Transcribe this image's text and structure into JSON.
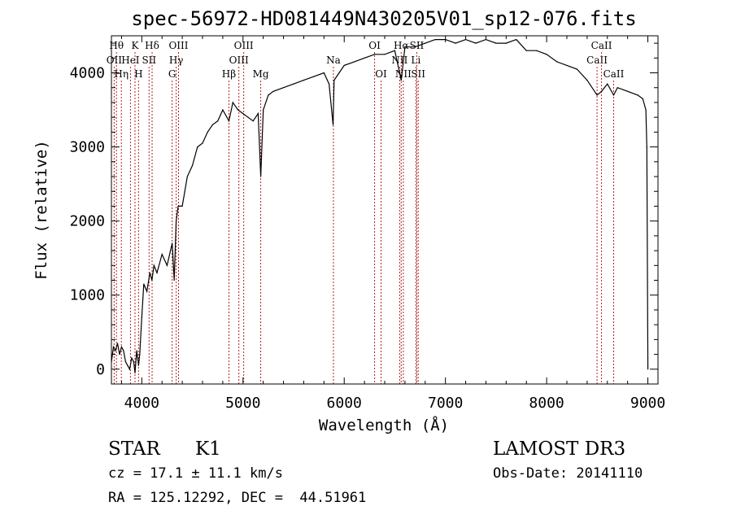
{
  "chart_data": {
    "type": "line",
    "title": "spec-56972-HD081449N430205V01_sp12-076.fits",
    "xlabel": "Wavelength (Å)",
    "ylabel": "Flux (relative)",
    "xlim": [
      3700,
      9100
    ],
    "ylim": [
      -200,
      4500
    ],
    "xticks": [
      4000,
      5000,
      6000,
      7000,
      8000,
      9000
    ],
    "yticks": [
      0,
      1000,
      2000,
      3000,
      4000
    ],
    "grid": false,
    "series": [
      {
        "x": [
          3700,
          3720,
          3740,
          3760,
          3780,
          3800,
          3820,
          3840,
          3860,
          3880,
          3900,
          3920,
          3933,
          3950,
          3968,
          3980,
          4000,
          4020,
          4050,
          4080,
          4100,
          4120,
          4150,
          4200,
          4250,
          4300,
          4320,
          4340,
          4360,
          4400,
          4450,
          4500,
          4550,
          4600,
          4650,
          4700,
          4750,
          4800,
          4861,
          4900,
          4950,
          5000,
          5050,
          5100,
          5150,
          5175,
          5200,
          5250,
          5300,
          5400,
          5500,
          5600,
          5700,
          5800,
          5850,
          5890,
          5900,
          5950,
          6000,
          6100,
          6200,
          6300,
          6400,
          6500,
          6563,
          6600,
          6700,
          6800,
          6900,
          7000,
          7100,
          7200,
          7300,
          7400,
          7500,
          7600,
          7700,
          7800,
          7900,
          8000,
          8100,
          8200,
          8300,
          8400,
          8498,
          8542,
          8600,
          8662,
          8700,
          8800,
          8900,
          8950,
          8980,
          8990,
          9000
        ],
        "y": [
          100,
          300,
          250,
          350,
          200,
          300,
          250,
          100,
          50,
          0,
          150,
          100,
          -50,
          250,
          50,
          200,
          700,
          1150,
          1050,
          1300,
          1200,
          1400,
          1300,
          1550,
          1400,
          1700,
          1200,
          2000,
          2200,
          2200,
          2600,
          2750,
          3000,
          3050,
          3200,
          3300,
          3350,
          3500,
          3350,
          3600,
          3500,
          3450,
          3400,
          3350,
          3450,
          2600,
          3500,
          3700,
          3750,
          3800,
          3850,
          3900,
          3950,
          4000,
          3850,
          3300,
          3900,
          4000,
          4100,
          4150,
          4200,
          4250,
          4250,
          4300,
          3900,
          4350,
          4350,
          4400,
          4450,
          4450,
          4400,
          4450,
          4400,
          4450,
          4400,
          4400,
          4450,
          4300,
          4300,
          4250,
          4150,
          4100,
          4050,
          3900,
          3700,
          3750,
          3850,
          3700,
          3800,
          3750,
          3700,
          3650,
          3500,
          3000,
          0
        ]
      }
    ],
    "line_markers": [
      {
        "wl": 3750,
        "label": "Hθ",
        "row": 0
      },
      {
        "wl": 3727,
        "label": "OII",
        "row": 1
      },
      {
        "wl": 3798,
        "label": "Hη",
        "row": 2
      },
      {
        "wl": 3888,
        "label": "HeI",
        "row": 1
      },
      {
        "wl": 3933,
        "label": "K",
        "row": 0
      },
      {
        "wl": 3968,
        "label": "H",
        "row": 2
      },
      {
        "wl": 4072,
        "label": "SII",
        "row": 1
      },
      {
        "wl": 4102,
        "label": "Hδ",
        "row": 0
      },
      {
        "wl": 4300,
        "label": "G",
        "row": 2
      },
      {
        "wl": 4340,
        "label": "Hγ",
        "row": 1
      },
      {
        "wl": 4363,
        "label": "OIII",
        "row": 0
      },
      {
        "wl": 4861,
        "label": "Hβ",
        "row": 2
      },
      {
        "wl": 4959,
        "label": "OIII",
        "row": 1
      },
      {
        "wl": 5007,
        "label": "OIII",
        "row": 0
      },
      {
        "wl": 5175,
        "label": "Mg",
        "row": 2
      },
      {
        "wl": 5893,
        "label": "Na",
        "row": 1
      },
      {
        "wl": 6300,
        "label": "OI",
        "row": 0
      },
      {
        "wl": 6364,
        "label": "OI",
        "row": 2
      },
      {
        "wl": 6548,
        "label": "NII",
        "row": 1
      },
      {
        "wl": 6563,
        "label": "Hα",
        "row": 0
      },
      {
        "wl": 6584,
        "label": "NII",
        "row": 2
      },
      {
        "wl": 6708,
        "label": "Li",
        "row": 1
      },
      {
        "wl": 6717,
        "label": "SII",
        "row": 0
      },
      {
        "wl": 6731,
        "label": "SII",
        "row": 2
      },
      {
        "wl": 8498,
        "label": "CaII",
        "row": 1
      },
      {
        "wl": 8542,
        "label": "CaII",
        "row": 0
      },
      {
        "wl": 8662,
        "label": "CaII",
        "row": 2
      }
    ]
  },
  "footer": {
    "object_type": "STAR",
    "subclass": "K1",
    "survey": "LAMOST DR3",
    "cz": "cz = 17.1 ± 11.1 km/s",
    "obs_date": "Obs-Date: 20141110",
    "coords": "RA = 125.12292, DEC =  44.51961"
  }
}
